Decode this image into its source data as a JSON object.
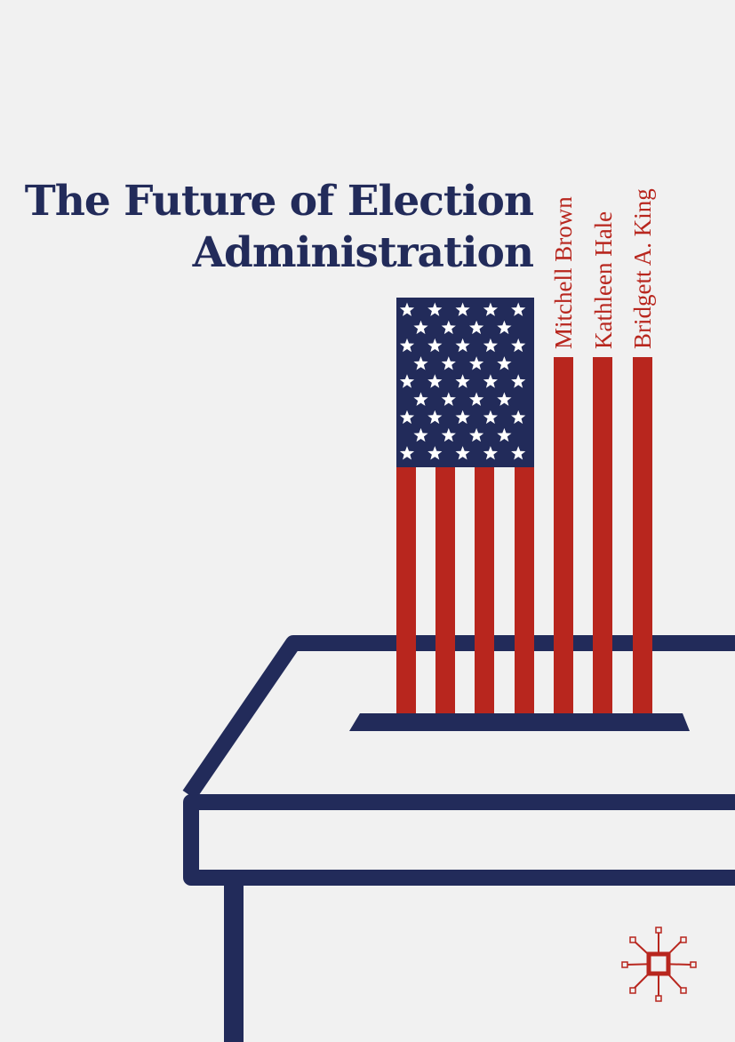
{
  "cover": {
    "title_line1": "The Future of Election",
    "title_line2": "Administration",
    "authors": [
      "Mitchell Brown",
      "Kathleen Hale",
      "Bridgett A. King"
    ],
    "publisher_logo": "palgrave-logo"
  },
  "colors": {
    "background": "#f1f1f1",
    "navy": "#222b5a",
    "red": "#b8261e",
    "white": "#ffffff"
  },
  "icons": [
    "flag-icon",
    "ballot-box-icon",
    "palgrave-logo"
  ]
}
